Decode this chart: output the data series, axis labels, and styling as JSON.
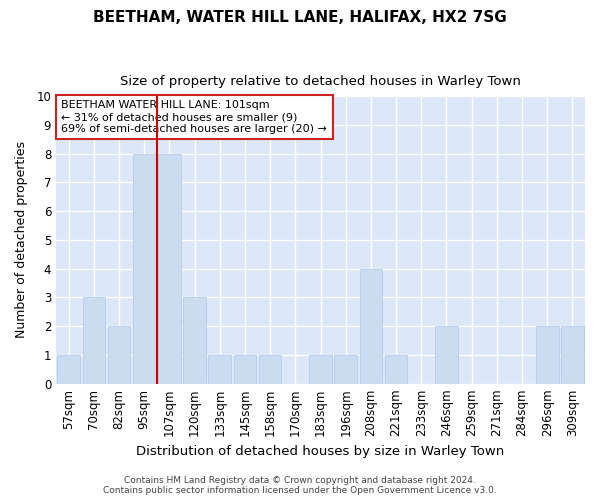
{
  "title": "BEETHAM, WATER HILL LANE, HALIFAX, HX2 7SG",
  "subtitle": "Size of property relative to detached houses in Warley Town",
  "xlabel": "Distribution of detached houses by size in Warley Town",
  "ylabel": "Number of detached properties",
  "categories": [
    "57sqm",
    "70sqm",
    "82sqm",
    "95sqm",
    "107sqm",
    "120sqm",
    "133sqm",
    "145sqm",
    "158sqm",
    "170sqm",
    "183sqm",
    "196sqm",
    "208sqm",
    "221sqm",
    "233sqm",
    "246sqm",
    "259sqm",
    "271sqm",
    "284sqm",
    "296sqm",
    "309sqm"
  ],
  "values": [
    1,
    3,
    2,
    8,
    8,
    3,
    1,
    1,
    1,
    0,
    1,
    1,
    4,
    1,
    0,
    2,
    0,
    0,
    0,
    2,
    2
  ],
  "bar_color": "#ccdcf0",
  "bar_edge_color": "#b8ccec",
  "property_line_index": 4,
  "property_line_color": "#cc0000",
  "annotation_text": "BEETHAM WATER HILL LANE: 101sqm\n← 31% of detached houses are smaller (9)\n69% of semi-detached houses are larger (20) →",
  "annotation_box_facecolor": "white",
  "annotation_box_edgecolor": "#cc2222",
  "ylim": [
    0,
    10
  ],
  "yticks": [
    0,
    1,
    2,
    3,
    4,
    5,
    6,
    7,
    8,
    9,
    10
  ],
  "footnote": "Contains HM Land Registry data © Crown copyright and database right 2024.\nContains public sector information licensed under the Open Government Licence v3.0.",
  "fig_facecolor": "#ffffff",
  "plot_facecolor": "#dce8f8",
  "grid_color": "#ffffff",
  "title_fontsize": 11,
  "subtitle_fontsize": 9.5,
  "ylabel_fontsize": 9,
  "xlabel_fontsize": 9.5,
  "tick_fontsize": 8.5,
  "annot_fontsize": 8
}
